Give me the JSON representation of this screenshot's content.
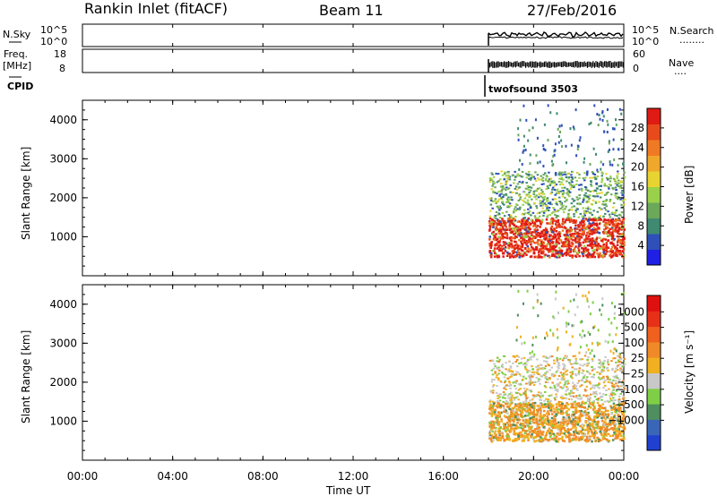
{
  "header": {
    "station": "Rankin Inlet (fitACF)",
    "beam": "Beam 11",
    "date": "27/Feb/2016"
  },
  "strip_labels": {
    "nsky": "N.Sky",
    "freq_top": "Freq.",
    "freq_unit": "[MHz]",
    "cpid": "CPID",
    "nsearch": "N.Search",
    "nave": "Nave",
    "dotted_leader": "........",
    "dotted_leader_short": "...."
  },
  "noise_strip": {
    "ticks_left": [
      "10^5",
      "10^0"
    ],
    "ticks_right": [
      "10^5",
      "10^0"
    ],
    "start_hour": 18
  },
  "freq_strip": {
    "ticks_left": [
      "18",
      "8"
    ],
    "ticks_right": [
      "60",
      "0"
    ],
    "start_hour": 18
  },
  "cpid_strip": {
    "label": "twofsound 3503",
    "start_hour": 18
  },
  "x_axis": {
    "label": "Time UT",
    "range_hours": [
      0,
      24
    ],
    "ticks": [
      {
        "hour": 0,
        "label": "00:00"
      },
      {
        "hour": 4,
        "label": "04:00"
      },
      {
        "hour": 8,
        "label": "08:00"
      },
      {
        "hour": 12,
        "label": "12:00"
      },
      {
        "hour": 16,
        "label": "16:00"
      },
      {
        "hour": 20,
        "label": "20:00"
      },
      {
        "hour": 24,
        "label": "00:00"
      }
    ]
  },
  "chart_data": [
    {
      "type": "heatmap",
      "ylabel": "Slant Range [km]",
      "ylim": [
        0,
        4500
      ],
      "y_ticks": [
        {
          "value": 1000,
          "label": "1000"
        },
        {
          "value": 2000,
          "label": "2000"
        },
        {
          "value": 3000,
          "label": "3000"
        },
        {
          "value": 4000,
          "label": "4000"
        }
      ],
      "colorbar": {
        "label": "Power [dB]",
        "range": [
          0,
          32
        ],
        "ticks": [
          "4",
          "8",
          "12",
          "16",
          "20",
          "24",
          "28"
        ],
        "colors": [
          "#1f1fe6",
          "#2f50b8",
          "#3f8a70",
          "#6ca85a",
          "#9ad14a",
          "#e8d430",
          "#f0a82c",
          "#f07a24",
          "#e84a1c",
          "#e01a14"
        ]
      },
      "data_start_hour": 18,
      "data_end_hour": 24
    },
    {
      "type": "heatmap",
      "ylabel": "Slant Range [km]",
      "ylim": [
        0,
        4500
      ],
      "y_ticks": [
        {
          "value": 1000,
          "label": "1000"
        },
        {
          "value": 2000,
          "label": "2000"
        },
        {
          "value": 3000,
          "label": "3000"
        },
        {
          "value": 4000,
          "label": "4000"
        }
      ],
      "colorbar": {
        "label": "Velocity [m s⁻¹]",
        "ticks": [
          "1000",
          "500",
          "100",
          "25",
          "−25",
          "−100",
          "−500",
          "−1000"
        ],
        "colors": [
          "#2040d0",
          "#3a66b8",
          "#4f8e5e",
          "#7fcf46",
          "#c8c8c8",
          "#f0b020",
          "#f08a28",
          "#f0601e",
          "#e83018",
          "#e01010"
        ]
      },
      "data_start_hour": 18,
      "data_end_hour": 24
    }
  ]
}
